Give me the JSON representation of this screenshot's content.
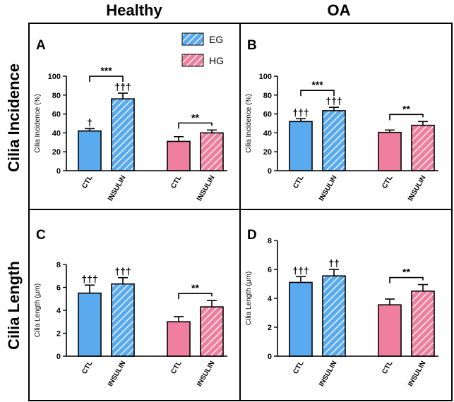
{
  "column_headers": [
    "Healthy",
    "OA"
  ],
  "row_headers": [
    "Cilia Incidence",
    "Cilia Length"
  ],
  "legend": [
    {
      "label": "EG",
      "color": "#5aaaf0",
      "pattern": "hatched"
    },
    {
      "label": "HG",
      "color": "#f07f9f",
      "pattern": "hatched"
    }
  ],
  "colors": {
    "eg": "#5aaaf0",
    "hg": "#f07f9f",
    "hatch": "#ffffff",
    "axis": "#000000"
  },
  "chart_data": [
    {
      "panel": "A",
      "type": "bar",
      "condition": "Healthy",
      "metric": "Cilia Incidence",
      "ylabel": "Cilia Incidence (%)",
      "ylim": [
        0,
        100
      ],
      "yticks": [
        0,
        20,
        40,
        60,
        80,
        100
      ],
      "categories": [
        "CTL",
        "INSULIN",
        "CTL",
        "INSULIN"
      ],
      "groups": [
        "EG",
        "EG",
        "HG",
        "HG"
      ],
      "hatched": [
        false,
        true,
        false,
        true
      ],
      "values": [
        42,
        76,
        31,
        40
      ],
      "errors": [
        2.5,
        6,
        5,
        3
      ],
      "bar_annotations": [
        "†",
        "†††",
        "",
        ""
      ],
      "significance": [
        {
          "from": 0,
          "to": 1,
          "label": "***"
        },
        {
          "from": 2,
          "to": 3,
          "label": "**"
        }
      ]
    },
    {
      "panel": "B",
      "type": "bar",
      "condition": "OA",
      "metric": "Cilia Incidence",
      "ylabel": "Cilia Incidence (%)",
      "ylim": [
        0,
        100
      ],
      "yticks": [
        0,
        20,
        40,
        60,
        80,
        100
      ],
      "categories": [
        "CTL",
        "INSULIN",
        "CTL",
        "INSULIN"
      ],
      "groups": [
        "EG",
        "EG",
        "HG",
        "HG"
      ],
      "hatched": [
        false,
        true,
        false,
        true
      ],
      "values": [
        52,
        63.5,
        40.5,
        48
      ],
      "errors": [
        3,
        3.5,
        2.5,
        4
      ],
      "bar_annotations": [
        "†††",
        "†††",
        "",
        ""
      ],
      "significance": [
        {
          "from": 0,
          "to": 1,
          "label": "***"
        },
        {
          "from": 2,
          "to": 3,
          "label": "**"
        }
      ]
    },
    {
      "panel": "C",
      "type": "bar",
      "condition": "Healthy",
      "metric": "Cilia Length",
      "ylabel": "Cilia Length (μm)",
      "ylim": [
        0,
        8
      ],
      "yticks": [
        0,
        2,
        4,
        6,
        8
      ],
      "categories": [
        "CTL",
        "INSULIN",
        "CTL",
        "INSULIN"
      ],
      "groups": [
        "EG",
        "EG",
        "HG",
        "HG"
      ],
      "hatched": [
        false,
        true,
        false,
        true
      ],
      "values": [
        5.5,
        6.3,
        3.0,
        4.3
      ],
      "errors": [
        0.7,
        0.55,
        0.45,
        0.55
      ],
      "bar_annotations": [
        "†††",
        "†††",
        "",
        ""
      ],
      "significance": [
        {
          "from": 2,
          "to": 3,
          "label": "**"
        }
      ]
    },
    {
      "panel": "D",
      "type": "bar",
      "condition": "OA",
      "metric": "Cilia Length",
      "ylabel": "Cilia Length (μm)",
      "ylim": [
        0,
        8
      ],
      "yticks": [
        0,
        2,
        4,
        6,
        8
      ],
      "categories": [
        "CTL",
        "INSULIN",
        "CTL",
        "INSULIN"
      ],
      "groups": [
        "EG",
        "EG",
        "HG",
        "HG"
      ],
      "hatched": [
        false,
        true,
        false,
        true
      ],
      "values": [
        5.1,
        5.55,
        3.55,
        4.5
      ],
      "errors": [
        0.4,
        0.45,
        0.4,
        0.45
      ],
      "bar_annotations": [
        "†††",
        "††",
        "",
        ""
      ],
      "significance": [
        {
          "from": 2,
          "to": 3,
          "label": "**"
        }
      ]
    }
  ]
}
